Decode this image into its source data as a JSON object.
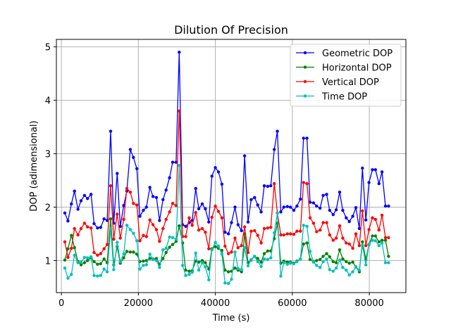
{
  "chart_data": {
    "type": "line",
    "title": "Dilution Of Precision",
    "xlabel": "Time (s)",
    "ylabel": "DOP (adimensional)",
    "xlim": [
      -1300,
      89500
    ],
    "ylim": [
      0.4,
      5.14
    ],
    "xticks": [
      0,
      20000,
      40000,
      60000,
      80000
    ],
    "yticks": [
      1,
      2,
      3,
      4,
      5
    ],
    "grid": true,
    "legend_position": "top-right",
    "x": [
      900,
      1700,
      2600,
      3400,
      4300,
      5100,
      6000,
      6800,
      7700,
      8500,
      9400,
      10200,
      11100,
      11900,
      12800,
      13600,
      14500,
      15300,
      16200,
      17000,
      17900,
      18700,
      19600,
      20400,
      21300,
      22100,
      23000,
      23800,
      24700,
      25500,
      26400,
      27200,
      28100,
      28900,
      29800,
      30600,
      31500,
      32300,
      33200,
      34000,
      34900,
      35700,
      36600,
      37400,
      38300,
      39100,
      40000,
      40800,
      41700,
      42500,
      43400,
      44200,
      45100,
      45900,
      46800,
      47600,
      48500,
      49300,
      50200,
      51000,
      51900,
      52700,
      53600,
      54400,
      55300,
      56100,
      57000,
      57800,
      58700,
      59500,
      60400,
      61200,
      62100,
      62900,
      63800,
      64600,
      65500,
      66300,
      67200,
      68000,
      68900,
      69700,
      70600,
      71400,
      72300,
      73100,
      74000,
      74800,
      75700,
      76500,
      77400,
      78200,
      79100,
      79900,
      80800,
      81600,
      82500,
      83300,
      84200,
      85000
    ],
    "series": [
      {
        "name": "Geometric DOP",
        "color": "#0000ff",
        "values": [
          1.89,
          1.74,
          2.06,
          2.3,
          1.96,
          2.12,
          2.22,
          2.16,
          2.24,
          1.69,
          1.61,
          1.62,
          1.78,
          1.75,
          3.42,
          1.7,
          2.63,
          1.64,
          2.03,
          2.3,
          3.08,
          2.93,
          2.72,
          1.83,
          1.94,
          2.0,
          2.37,
          2.2,
          2.18,
          1.75,
          2.14,
          2.32,
          2.55,
          2.84,
          2.84,
          4.9,
          1.67,
          1.64,
          1.71,
          1.75,
          2.35,
          1.97,
          2.06,
          1.97,
          1.72,
          2.58,
          2.74,
          2.66,
          2.43,
          1.53,
          1.5,
          1.71,
          2.0,
          1.67,
          1.56,
          2.96,
          1.72,
          2.14,
          2.18,
          2.04,
          1.91,
          2.4,
          2.39,
          2.4,
          3.08,
          3.42,
          1.91,
          2.0,
          2.01,
          2.0,
          1.94,
          2.02,
          2.15,
          3.29,
          3.29,
          2.09,
          2.08,
          2.02,
          1.98,
          2.22,
          2.24,
          1.94,
          1.86,
          1.95,
          2.28,
          1.94,
          1.8,
          1.73,
          1.83,
          1.99,
          1.6,
          2.73,
          1.76,
          2.46,
          2.7,
          2.7,
          2.44,
          2.66,
          2.02,
          2.02
        ]
      },
      {
        "name": "Horizontal DOP",
        "color": "#008000",
        "values": [
          1.01,
          1.22,
          1.47,
          1.24,
          0.98,
          0.92,
          0.96,
          1.0,
          1.05,
          0.98,
          0.93,
          0.94,
          1.03,
          0.96,
          1.78,
          0.92,
          1.26,
          0.95,
          1.05,
          1.17,
          1.16,
          1.16,
          1.12,
          0.98,
          0.99,
          1.0,
          1.04,
          1.03,
          1.04,
          0.93,
          1.04,
          1.15,
          1.25,
          1.3,
          1.36,
          1.65,
          1.33,
          0.82,
          0.8,
          0.81,
          0.99,
          0.97,
          1.0,
          0.96,
          0.84,
          1.22,
          1.26,
          1.23,
          1.19,
          0.82,
          0.79,
          0.8,
          0.86,
          0.82,
          0.79,
          1.5,
          0.96,
          1.01,
          1.08,
          1.04,
          0.97,
          1.13,
          1.18,
          1.18,
          1.41,
          1.7,
          0.95,
          0.99,
          0.97,
          0.97,
          0.95,
          0.99,
          1.03,
          1.31,
          1.33,
          1.02,
          0.98,
          1.0,
          1.02,
          1.08,
          1.13,
          1.07,
          0.98,
          0.96,
          1.2,
          1.03,
          0.98,
          0.95,
          0.97,
          0.88,
          0.79,
          1.35,
          1.02,
          1.3,
          1.46,
          1.46,
          1.35,
          1.38,
          1.38,
          1.08
        ]
      },
      {
        "name": "Vertical DOP",
        "color": "#ff0000",
        "values": [
          1.35,
          1.06,
          1.23,
          1.6,
          1.48,
          1.6,
          1.7,
          1.63,
          1.61,
          1.15,
          1.1,
          1.13,
          1.22,
          1.3,
          2.4,
          1.4,
          1.87,
          1.42,
          1.77,
          2.35,
          2.28,
          2.07,
          2.04,
          1.37,
          1.47,
          1.45,
          1.76,
          1.67,
          1.58,
          1.36,
          1.6,
          1.77,
          1.91,
          2.07,
          2.03,
          3.8,
          1.45,
          1.45,
          1.8,
          1.66,
          1.9,
          1.57,
          1.6,
          1.53,
          1.22,
          1.81,
          2.02,
          1.92,
          1.8,
          1.27,
          1.13,
          1.16,
          1.42,
          1.24,
          1.28,
          1.63,
          1.15,
          1.55,
          1.56,
          1.47,
          1.33,
          1.6,
          1.61,
          1.62,
          2.44,
          1.89,
          1.48,
          1.48,
          1.5,
          1.5,
          1.49,
          1.55,
          1.55,
          2.46,
          2.44,
          1.8,
          1.7,
          1.54,
          1.57,
          1.71,
          1.71,
          1.48,
          1.38,
          1.42,
          1.65,
          1.42,
          1.33,
          1.31,
          1.23,
          1.5,
          1.28,
          1.93,
          1.28,
          1.58,
          1.8,
          1.77,
          1.57,
          1.85,
          1.43,
          1.43
        ]
      },
      {
        "name": "Time DOP",
        "color": "#00bfbf",
        "values": [
          0.86,
          0.67,
          0.74,
          1.1,
          0.96,
          0.97,
          1.06,
          1.05,
          1.07,
          0.72,
          0.71,
          0.72,
          0.84,
          0.79,
          1.6,
          0.83,
          1.34,
          0.98,
          1.13,
          1.66,
          1.58,
          1.51,
          1.37,
          0.84,
          0.91,
          0.92,
          1.12,
          1.02,
          1.0,
          0.87,
          1.2,
          1.23,
          1.44,
          1.43,
          1.4,
          2.78,
          0.91,
          0.72,
          0.74,
          0.78,
          1.14,
          0.82,
          0.96,
          0.88,
          0.64,
          1.2,
          1.34,
          1.27,
          1.12,
          0.58,
          0.57,
          0.65,
          1.16,
          0.85,
          0.83,
          1.24,
          0.9,
          1.02,
          1.08,
          0.98,
          0.89,
          1.03,
          1.02,
          1.05,
          1.52,
          1.89,
          0.71,
          0.96,
          0.93,
          0.95,
          0.94,
          0.98,
          1.03,
          1.66,
          1.64,
          1.17,
          0.97,
          0.91,
          0.87,
          0.98,
          1.03,
          0.83,
          0.8,
          0.86,
          1.01,
          0.87,
          0.82,
          0.73,
          0.79,
          0.88,
          0.82,
          1.29,
          0.92,
          1.31,
          1.38,
          1.37,
          1.28,
          1.33,
          0.96,
          0.96
        ]
      }
    ]
  }
}
